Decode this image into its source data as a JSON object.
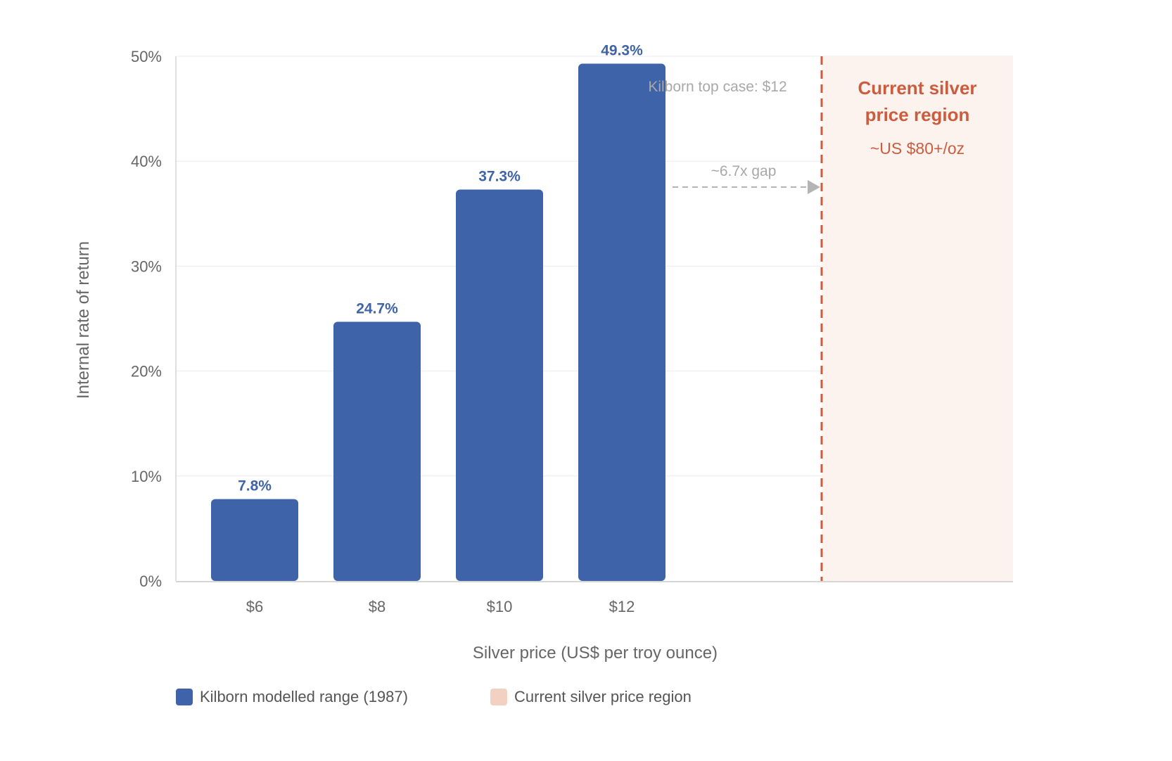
{
  "chart_data": {
    "type": "bar",
    "categories": [
      "$6",
      "$8",
      "$10",
      "$12"
    ],
    "values": [
      7.8,
      24.7,
      37.3,
      49.3
    ],
    "value_labels": [
      "7.8%",
      "24.7%",
      "37.3%",
      "49.3%"
    ],
    "xlabel": "Silver price (US$ per troy ounce)",
    "ylabel": "Internal rate of return",
    "ylim": [
      0,
      50
    ],
    "yticks": [
      0,
      10,
      20,
      30,
      40,
      50
    ],
    "ytick_labels": [
      "0%",
      "10%",
      "20%",
      "30%",
      "40%",
      "50%"
    ],
    "grid": true,
    "legend": {
      "placement": "bottom-left",
      "items": [
        {
          "label": "Kilborn modelled range (1987)",
          "color": "#3f63a8"
        },
        {
          "label": "Current silver price region",
          "color": "#f2d0c2"
        }
      ]
    },
    "annotations": {
      "top_case": "Kilborn top case: $12",
      "gap": "~6.7x gap",
      "region_title_line1": "Current silver",
      "region_title_line2": "price region",
      "region_sub": "~US $80+/oz"
    },
    "colors": {
      "bar": "#3f63a8",
      "region_fill": "#fcf3ef",
      "region_line": "#cc5c3e",
      "arrow": "#b4b4b4"
    }
  }
}
